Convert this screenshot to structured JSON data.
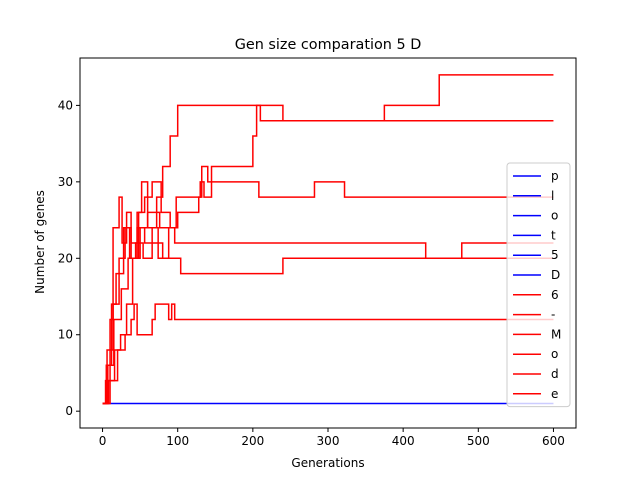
{
  "chart_data": {
    "type": "line",
    "title": "Gen size comparation 5 D",
    "xlabel": "Generations",
    "ylabel": "Number of genes",
    "xlim": [
      -30,
      630
    ],
    "ylim": [
      -2.2,
      46.2
    ],
    "xticks": [
      0,
      100,
      200,
      300,
      400,
      500,
      600
    ],
    "yticks": [
      0,
      10,
      20,
      30,
      40
    ],
    "grid": false,
    "legend_position": "center-right",
    "legend": [
      {
        "label": "p",
        "color": "#0000ff"
      },
      {
        "label": "l",
        "color": "#0000ff"
      },
      {
        "label": "o",
        "color": "#0000ff"
      },
      {
        "label": "t",
        "color": "#0000ff"
      },
      {
        "label": "5",
        "color": "#0000ff"
      },
      {
        "label": "D",
        "color": "#0000ff"
      },
      {
        "label": "6",
        "color": "#ff0000"
      },
      {
        "label": "-",
        "color": "#ff0000"
      },
      {
        "label": "M",
        "color": "#ff0000"
      },
      {
        "label": "o",
        "color": "#ff0000"
      },
      {
        "label": "d",
        "color": "#ff0000"
      },
      {
        "label": "e",
        "color": "#ff0000"
      }
    ],
    "series": [
      {
        "color": "#0000ff",
        "steps": [
          [
            0,
            1
          ],
          [
            600,
            1
          ]
        ]
      },
      {
        "color": "#ff0000",
        "steps": [
          [
            0,
            1
          ],
          [
            4,
            4
          ],
          [
            10,
            12
          ],
          [
            14,
            24
          ],
          [
            22,
            28
          ],
          [
            26,
            22
          ],
          [
            32,
            26
          ],
          [
            38,
            22
          ],
          [
            46,
            26
          ],
          [
            52,
            30
          ],
          [
            60,
            24
          ],
          [
            72,
            28
          ],
          [
            80,
            32
          ],
          [
            90,
            36
          ],
          [
            100,
            40
          ],
          [
            205,
            40
          ],
          [
            210,
            38
          ],
          [
            240,
            38
          ],
          [
            280,
            38
          ],
          [
            370,
            38
          ],
          [
            375,
            40
          ],
          [
            445,
            40
          ],
          [
            448,
            44
          ],
          [
            600,
            44
          ]
        ]
      },
      {
        "color": "#ff0000",
        "steps": [
          [
            0,
            1
          ],
          [
            5,
            6
          ],
          [
            12,
            14
          ],
          [
            18,
            18
          ],
          [
            28,
            24
          ],
          [
            36,
            20
          ],
          [
            48,
            26
          ],
          [
            56,
            28
          ],
          [
            66,
            30
          ],
          [
            78,
            26
          ],
          [
            90,
            24
          ],
          [
            98,
            28
          ],
          [
            130,
            30
          ],
          [
            135,
            28
          ],
          [
            145,
            32
          ],
          [
            195,
            32
          ],
          [
            200,
            36
          ],
          [
            205,
            40
          ],
          [
            235,
            40
          ],
          [
            240,
            38
          ],
          [
            600,
            38
          ]
        ]
      },
      {
        "color": "#ff0000",
        "steps": [
          [
            0,
            1
          ],
          [
            8,
            4
          ],
          [
            16,
            8
          ],
          [
            24,
            10
          ],
          [
            32,
            14
          ],
          [
            40,
            20
          ],
          [
            50,
            24
          ],
          [
            60,
            26
          ],
          [
            76,
            24
          ],
          [
            94,
            24
          ],
          [
            100,
            26
          ],
          [
            108,
            26
          ],
          [
            128,
            28
          ],
          [
            132,
            32
          ],
          [
            140,
            30
          ],
          [
            200,
            30
          ],
          [
            208,
            28
          ],
          [
            280,
            28
          ],
          [
            282,
            30
          ],
          [
            320,
            30
          ],
          [
            322,
            28
          ],
          [
            600,
            28
          ]
        ]
      },
      {
        "color": "#ff0000",
        "steps": [
          [
            0,
            1
          ],
          [
            6,
            8
          ],
          [
            14,
            14
          ],
          [
            22,
            20
          ],
          [
            30,
            24
          ],
          [
            38,
            20
          ],
          [
            46,
            24
          ],
          [
            56,
            22
          ],
          [
            68,
            22
          ],
          [
            80,
            20
          ],
          [
            88,
            24
          ],
          [
            96,
            22
          ],
          [
            100,
            22
          ],
          [
            428,
            22
          ],
          [
            430,
            20
          ],
          [
            475,
            20
          ],
          [
            478,
            22
          ],
          [
            600,
            22
          ]
        ]
      },
      {
        "color": "#ff0000",
        "steps": [
          [
            0,
            1
          ],
          [
            7,
            6
          ],
          [
            15,
            12
          ],
          [
            25,
            16
          ],
          [
            34,
            20
          ],
          [
            44,
            22
          ],
          [
            54,
            20
          ],
          [
            66,
            24
          ],
          [
            74,
            20
          ],
          [
            94,
            20
          ],
          [
            100,
            20
          ],
          [
            104,
            18
          ],
          [
            108,
            18
          ],
          [
            238,
            18
          ],
          [
            240,
            20
          ],
          [
            600,
            20
          ]
        ]
      },
      {
        "color": "#ff0000",
        "steps": [
          [
            0,
            1
          ],
          [
            10,
            4
          ],
          [
            20,
            8
          ],
          [
            30,
            10
          ],
          [
            38,
            12
          ],
          [
            42,
            14
          ],
          [
            46,
            10
          ],
          [
            62,
            10
          ],
          [
            66,
            12
          ],
          [
            70,
            14
          ],
          [
            84,
            14
          ],
          [
            88,
            12
          ],
          [
            92,
            14
          ],
          [
            96,
            12
          ],
          [
            600,
            12
          ]
        ]
      }
    ]
  }
}
